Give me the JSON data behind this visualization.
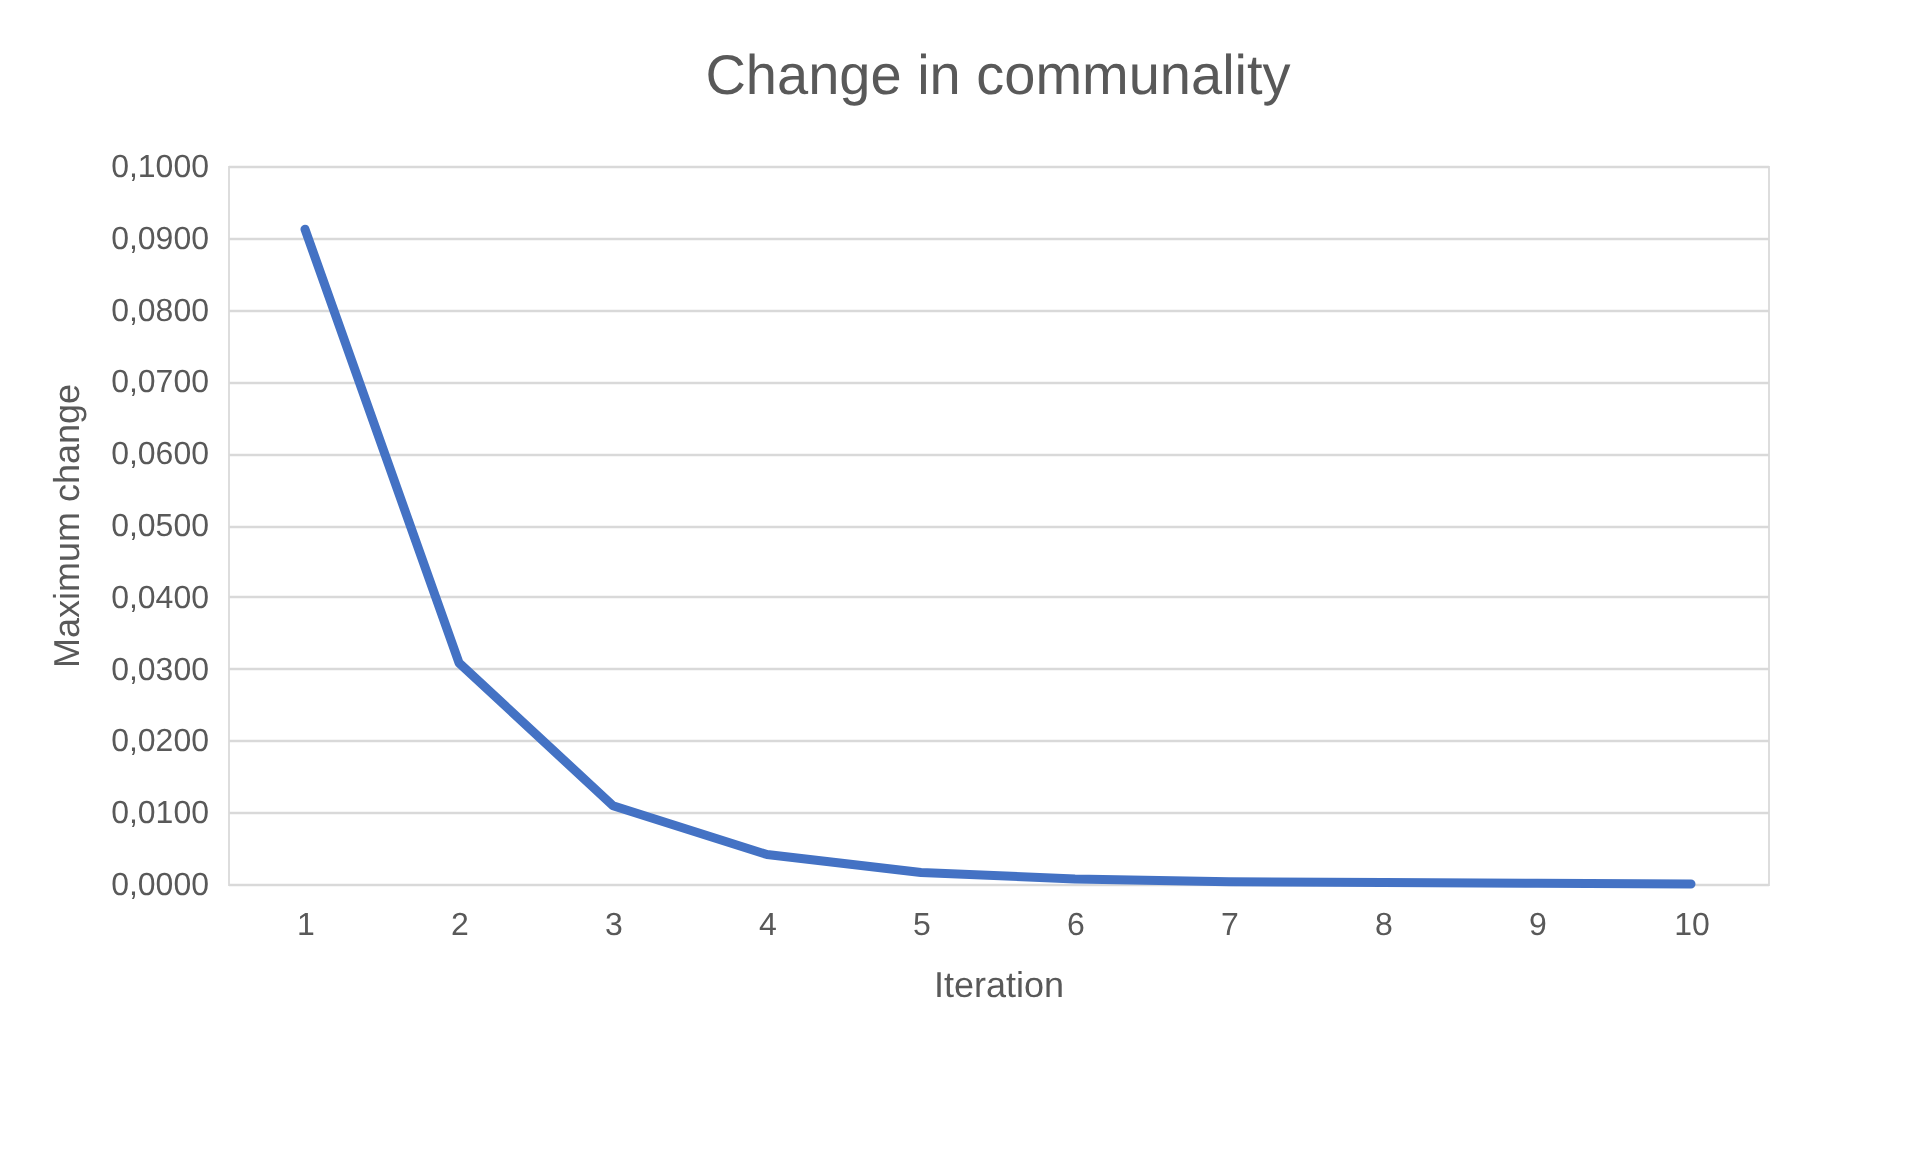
{
  "chart_data": {
    "type": "line",
    "title": "Change in communality",
    "xlabel": "Iteration",
    "ylabel": "Maximum change",
    "categories": [
      "1",
      "2",
      "3",
      "4",
      "5",
      "6",
      "7",
      "8",
      "9",
      "10"
    ],
    "series": [
      {
        "color": "#4472c4",
        "values": [
          0.0912,
          0.0308,
          0.0109,
          0.0041,
          0.0016,
          0.0007,
          0.0003,
          0.0002,
          0.0001,
          0.0
        ]
      }
    ],
    "ylim": [
      0,
      0.1
    ],
    "yticks": [
      {
        "value": 0,
        "label": "0,0000"
      },
      {
        "value": 0.01,
        "label": "0,0100"
      },
      {
        "value": 0.02,
        "label": "0,0200"
      },
      {
        "value": 0.03,
        "label": "0,0300"
      },
      {
        "value": 0.04,
        "label": "0,0400"
      },
      {
        "value": 0.05,
        "label": "0,0500"
      },
      {
        "value": 0.06,
        "label": "0,0600"
      },
      {
        "value": 0.07,
        "label": "0,0700"
      },
      {
        "value": 0.08,
        "label": "0,0800"
      },
      {
        "value": 0.09,
        "label": "0,0900"
      },
      {
        "value": 0.1,
        "label": "0,1000"
      }
    ],
    "grid": "y",
    "legend": false,
    "marker": "none",
    "line_style": "solid"
  }
}
